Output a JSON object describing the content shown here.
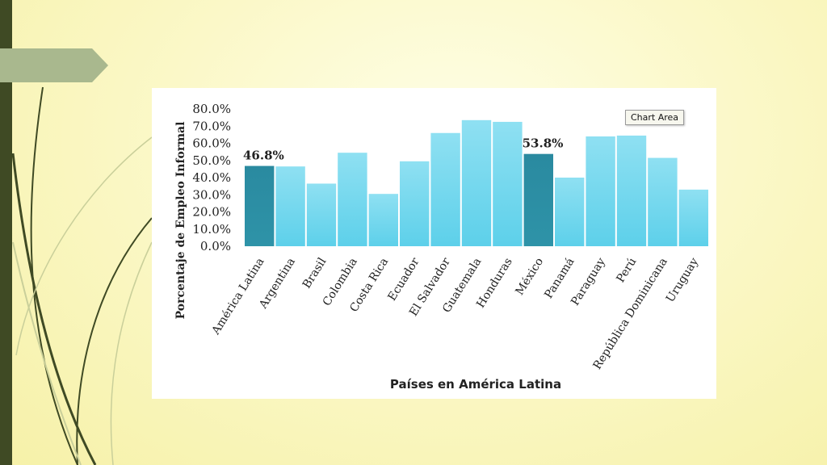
{
  "tooltip": "Chart Area",
  "colors": {
    "bar": "#5dd0ea",
    "bar_highlight": "#2e93a8",
    "left_bar": "#3f4a24",
    "arrow": "#a9b88e"
  },
  "chart_data": {
    "type": "bar",
    "xlabel": "Países en América Latina",
    "ylabel": "Porcentaje de Empleo Informal",
    "ylim": [
      0,
      80
    ],
    "yticks": [
      "0.0%",
      "10.0%",
      "20.0%",
      "30.0%",
      "40.0%",
      "50.0%",
      "60.0%",
      "70.0%",
      "80.0%"
    ],
    "categories": [
      "América Latina",
      "Argentina",
      "Brasil",
      "Colombia",
      "Costa Rica",
      "Ecuador",
      "El Salvador",
      "Guatemala",
      "Honduras",
      "México",
      "Panamá",
      "Paraguay",
      "Perú",
      "República Dominicana",
      "Uruguay"
    ],
    "values": [
      46.8,
      46.5,
      36.5,
      54.5,
      30.5,
      49.5,
      66.0,
      73.5,
      72.5,
      53.8,
      40.0,
      64.0,
      64.5,
      51.5,
      33.0
    ],
    "highlighted": [
      "América Latina",
      "México"
    ],
    "data_labels": [
      {
        "category": "América Latina",
        "text": "46.8%"
      },
      {
        "category": "México",
        "text": "53.8%"
      }
    ],
    "grid": false
  }
}
